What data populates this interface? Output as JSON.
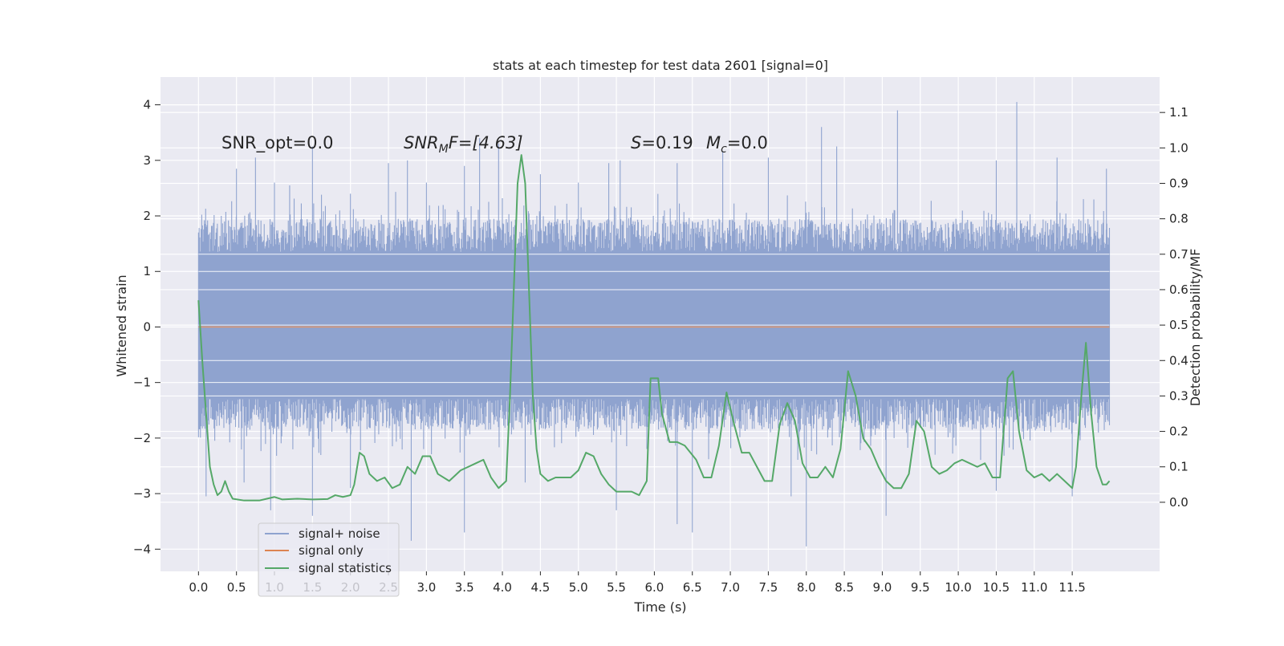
{
  "chart_data": {
    "type": "line",
    "title": "stats at each timestep for test data 2601 [signal=0]",
    "xlabel": "Time (s)",
    "ylabel_left": "Whitened strain",
    "ylabel_right": "Detection probability/MF",
    "xlim": [
      -0.5,
      12.65
    ],
    "ylim_left": [
      -4.4,
      4.5
    ],
    "ylim_right": [
      -0.195,
      1.2
    ],
    "grid": true,
    "legend_position": "lower-left",
    "x_ticks": [
      0.0,
      0.5,
      1.0,
      1.5,
      2.0,
      2.5,
      3.0,
      3.5,
      4.0,
      4.5,
      5.0,
      5.5,
      6.0,
      6.5,
      7.0,
      7.5,
      8.0,
      8.5,
      9.0,
      9.5,
      10.0,
      10.5,
      11.0,
      11.5
    ],
    "x_tick_labels": [
      "0.0",
      "0.5",
      "1.0",
      "1.5",
      "2.0",
      "2.5",
      "3.0",
      "3.5",
      "4.0",
      "4.5",
      "5.0",
      "5.5",
      "6.0",
      "6.5",
      "7.0",
      "7.5",
      "8.0",
      "8.5",
      "9.0",
      "9.5",
      "10.0",
      "10.5",
      "11.0",
      "11.5"
    ],
    "y_left_ticks": [
      -4,
      -3,
      -2,
      -1,
      0,
      1,
      2,
      3,
      4
    ],
    "y_left_tick_labels": [
      "−4",
      "−3",
      "−2",
      "−1",
      "0",
      "1",
      "2",
      "3",
      "4"
    ],
    "y_right_ticks": [
      0.0,
      0.1,
      0.2,
      0.3,
      0.4,
      0.5,
      0.6,
      0.7,
      0.8,
      0.9,
      1.0,
      1.1
    ],
    "y_right_tick_labels": [
      "0.0",
      "0.1",
      "0.2",
      "0.3",
      "0.4",
      "0.5",
      "0.6",
      "0.7",
      "0.8",
      "0.9",
      "1.0",
      "1.1"
    ],
    "annotations": {
      "snr_opt": "SNR_opt=0.0",
      "snr_mf_main": "SNR",
      "snr_mf_sub": "M",
      "snr_mf_tail": "F=[4.63]",
      "s_main": "S",
      "s_tail": "=0.19",
      "mc_main": "M",
      "mc_sub": "c",
      "mc_tail": "=0.0"
    },
    "series": [
      {
        "name": "signal+ noise",
        "axis": "left",
        "color": "#8fa3cf",
        "x_range": [
          0.0,
          11.99
        ],
        "core_band": [
          -1.85,
          1.95
        ],
        "peak_max": [
          [
            0.0,
            1.7
          ],
          [
            0.3,
            2.0
          ],
          [
            0.5,
            2.85
          ],
          [
            0.75,
            3.05
          ],
          [
            1.0,
            2.6
          ],
          [
            1.2,
            2.55
          ],
          [
            1.5,
            3.25
          ],
          [
            2.0,
            2.4
          ],
          [
            2.5,
            2.95
          ],
          [
            2.75,
            3.0
          ],
          [
            3.0,
            2.6
          ],
          [
            3.5,
            2.9
          ],
          [
            3.7,
            3.4
          ],
          [
            3.95,
            3.3
          ],
          [
            4.5,
            2.75
          ],
          [
            5.0,
            2.6
          ],
          [
            5.4,
            2.95
          ],
          [
            5.55,
            3.0
          ],
          [
            6.3,
            2.95
          ],
          [
            6.9,
            3.15
          ],
          [
            7.5,
            3.05
          ],
          [
            8.2,
            3.6
          ],
          [
            8.4,
            3.25
          ],
          [
            9.2,
            3.9
          ],
          [
            10.5,
            3.0
          ],
          [
            10.77,
            4.05
          ],
          [
            11.3,
            3.05
          ],
          [
            11.95,
            2.85
          ]
        ],
        "peak_min": [
          [
            0.1,
            -3.05
          ],
          [
            0.6,
            -2.8
          ],
          [
            0.95,
            -3.3
          ],
          [
            1.5,
            -3.4
          ],
          [
            2.0,
            -2.9
          ],
          [
            2.8,
            -3.85
          ],
          [
            3.5,
            -3.7
          ],
          [
            4.3,
            -2.8
          ],
          [
            5.5,
            -3.3
          ],
          [
            6.3,
            -3.55
          ],
          [
            6.5,
            -3.7
          ],
          [
            7.8,
            -3.05
          ],
          [
            8.0,
            -3.95
          ],
          [
            9.05,
            -3.4
          ],
          [
            10.5,
            -2.95
          ],
          [
            11.5,
            -3.05
          ]
        ]
      },
      {
        "name": "signal only",
        "axis": "left",
        "color": "#dd8452",
        "x": [
          0.0,
          11.99
        ],
        "y": [
          0.0,
          0.0
        ]
      },
      {
        "name": "signal statistics",
        "axis": "right",
        "color": "#55a868",
        "points": [
          [
            0.0,
            0.57
          ],
          [
            0.05,
            0.4
          ],
          [
            0.1,
            0.25
          ],
          [
            0.15,
            0.1
          ],
          [
            0.2,
            0.05
          ],
          [
            0.25,
            0.02
          ],
          [
            0.3,
            0.03
          ],
          [
            0.35,
            0.06
          ],
          [
            0.4,
            0.03
          ],
          [
            0.45,
            0.01
          ],
          [
            0.6,
            0.005
          ],
          [
            0.8,
            0.005
          ],
          [
            0.9,
            0.01
          ],
          [
            1.0,
            0.015
          ],
          [
            1.1,
            0.008
          ],
          [
            1.3,
            0.01
          ],
          [
            1.5,
            0.008
          ],
          [
            1.7,
            0.009
          ],
          [
            1.8,
            0.02
          ],
          [
            1.9,
            0.015
          ],
          [
            2.0,
            0.02
          ],
          [
            2.05,
            0.05
          ],
          [
            2.12,
            0.14
          ],
          [
            2.18,
            0.13
          ],
          [
            2.25,
            0.08
          ],
          [
            2.35,
            0.06
          ],
          [
            2.45,
            0.07
          ],
          [
            2.55,
            0.04
          ],
          [
            2.65,
            0.05
          ],
          [
            2.75,
            0.1
          ],
          [
            2.85,
            0.08
          ],
          [
            2.95,
            0.13
          ],
          [
            3.05,
            0.13
          ],
          [
            3.15,
            0.08
          ],
          [
            3.3,
            0.06
          ],
          [
            3.45,
            0.09
          ],
          [
            3.55,
            0.1
          ],
          [
            3.65,
            0.11
          ],
          [
            3.75,
            0.12
          ],
          [
            3.85,
            0.07
          ],
          [
            3.95,
            0.04
          ],
          [
            4.05,
            0.06
          ],
          [
            4.1,
            0.3
          ],
          [
            4.15,
            0.6
          ],
          [
            4.2,
            0.9
          ],
          [
            4.25,
            0.98
          ],
          [
            4.3,
            0.9
          ],
          [
            4.35,
            0.6
          ],
          [
            4.4,
            0.3
          ],
          [
            4.45,
            0.15
          ],
          [
            4.5,
            0.08
          ],
          [
            4.6,
            0.06
          ],
          [
            4.7,
            0.07
          ],
          [
            4.9,
            0.07
          ],
          [
            5.0,
            0.09
          ],
          [
            5.1,
            0.14
          ],
          [
            5.2,
            0.13
          ],
          [
            5.3,
            0.08
          ],
          [
            5.4,
            0.05
          ],
          [
            5.5,
            0.03
          ],
          [
            5.7,
            0.03
          ],
          [
            5.8,
            0.02
          ],
          [
            5.9,
            0.06
          ],
          [
            5.95,
            0.35
          ],
          [
            6.05,
            0.35
          ],
          [
            6.1,
            0.25
          ],
          [
            6.2,
            0.17
          ],
          [
            6.3,
            0.17
          ],
          [
            6.4,
            0.16
          ],
          [
            6.55,
            0.12
          ],
          [
            6.65,
            0.07
          ],
          [
            6.75,
            0.07
          ],
          [
            6.85,
            0.16
          ],
          [
            6.95,
            0.31
          ],
          [
            7.05,
            0.22
          ],
          [
            7.15,
            0.14
          ],
          [
            7.25,
            0.14
          ],
          [
            7.35,
            0.1
          ],
          [
            7.45,
            0.06
          ],
          [
            7.55,
            0.06
          ],
          [
            7.65,
            0.22
          ],
          [
            7.75,
            0.28
          ],
          [
            7.85,
            0.23
          ],
          [
            7.95,
            0.11
          ],
          [
            8.05,
            0.07
          ],
          [
            8.15,
            0.07
          ],
          [
            8.25,
            0.1
          ],
          [
            8.35,
            0.07
          ],
          [
            8.45,
            0.15
          ],
          [
            8.55,
            0.37
          ],
          [
            8.65,
            0.3
          ],
          [
            8.75,
            0.18
          ],
          [
            8.85,
            0.15
          ],
          [
            8.95,
            0.1
          ],
          [
            9.05,
            0.06
          ],
          [
            9.15,
            0.04
          ],
          [
            9.25,
            0.04
          ],
          [
            9.35,
            0.08
          ],
          [
            9.45,
            0.23
          ],
          [
            9.55,
            0.2
          ],
          [
            9.65,
            0.1
          ],
          [
            9.75,
            0.08
          ],
          [
            9.85,
            0.09
          ],
          [
            9.95,
            0.11
          ],
          [
            10.05,
            0.12
          ],
          [
            10.15,
            0.11
          ],
          [
            10.25,
            0.1
          ],
          [
            10.35,
            0.11
          ],
          [
            10.45,
            0.07
          ],
          [
            10.55,
            0.07
          ],
          [
            10.65,
            0.35
          ],
          [
            10.72,
            0.37
          ],
          [
            10.8,
            0.2
          ],
          [
            10.9,
            0.09
          ],
          [
            11.0,
            0.07
          ],
          [
            11.1,
            0.08
          ],
          [
            11.2,
            0.06
          ],
          [
            11.3,
            0.08
          ],
          [
            11.4,
            0.06
          ],
          [
            11.5,
            0.04
          ],
          [
            11.55,
            0.1
          ],
          [
            11.62,
            0.3
          ],
          [
            11.68,
            0.45
          ],
          [
            11.75,
            0.25
          ],
          [
            11.82,
            0.1
          ],
          [
            11.9,
            0.05
          ],
          [
            11.95,
            0.05
          ],
          [
            11.99,
            0.06
          ]
        ]
      }
    ]
  },
  "legend": {
    "items": [
      {
        "label": "signal+ noise",
        "color": "#8fa3cf"
      },
      {
        "label": "signal only",
        "color": "#dd8452"
      },
      {
        "label": "signal statistics",
        "color": "#55a868"
      }
    ]
  },
  "colors": {
    "plot_background": "#eaeaf2",
    "grid": "#ffffff"
  }
}
